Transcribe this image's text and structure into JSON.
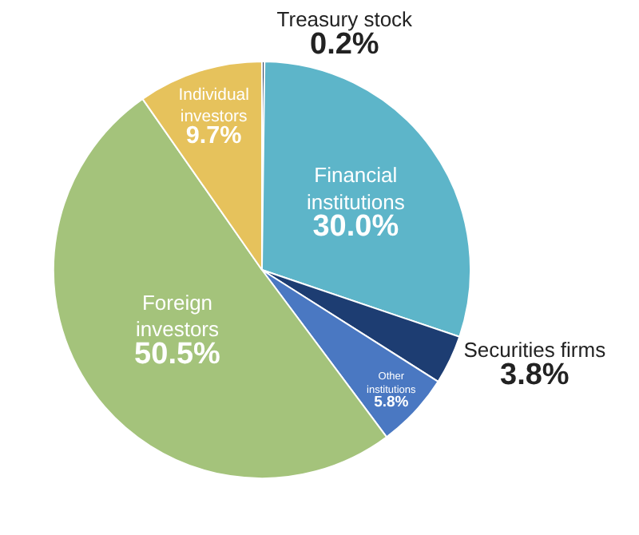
{
  "chart_data": {
    "type": "pie",
    "categories": [
      "Treasury stock",
      "Financial institutions",
      "Securities firms",
      "Other institutions",
      "Foreign investors",
      "Individual investors"
    ],
    "values": [
      0.2,
      30.0,
      3.8,
      5.8,
      50.5,
      9.7
    ],
    "value_labels": [
      "0.2%",
      "30.0%",
      "3.8%",
      "5.8%",
      "50.5%",
      "9.7%"
    ],
    "colors": [
      "#2b3f5c",
      "#5db5c9",
      "#1d3d72",
      "#4a78c2",
      "#a4c37b",
      "#e6c25c"
    ],
    "legend": false
  }
}
